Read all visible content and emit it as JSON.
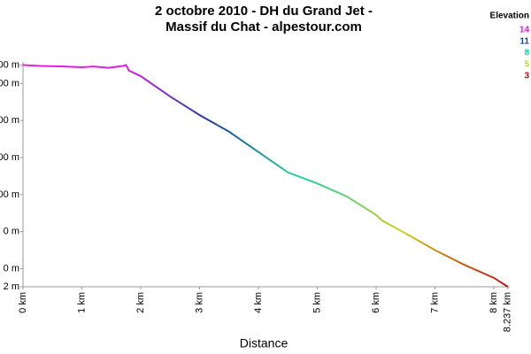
{
  "chart_data": {
    "type": "line",
    "title": [
      "2 octobre 2010 - DH du Grand Jet -",
      "Massif du Chat - alpestour.com"
    ],
    "xlabel": "Distance",
    "x": [
      0,
      0.3,
      0.7,
      1.0,
      1.2,
      1.45,
      1.7,
      1.75,
      1.8,
      2.0,
      2.5,
      3.0,
      3.5,
      4.0,
      4.5,
      5.0,
      5.5,
      6.0,
      6.1,
      6.5,
      7.0,
      7.5,
      8.0,
      8.237
    ],
    "series": [
      {
        "values": [
          1500,
          1495,
          1492,
          1488,
          1492,
          1485,
          1495,
          1500,
          1470,
          1440,
          1330,
          1230,
          1140,
          1030,
          920,
          860,
          790,
          690,
          660,
          590,
          500,
          420,
          350,
          302
        ]
      }
    ],
    "xlim": [
      0,
      8.237
    ],
    "xticks": [
      {
        "value": 0,
        "label": "0 km"
      },
      {
        "value": 1,
        "label": "1 km"
      },
      {
        "value": 2,
        "label": "2 km"
      },
      {
        "value": 3,
        "label": "3 km"
      },
      {
        "value": 4,
        "label": "4 km"
      },
      {
        "value": 5,
        "label": "5 km"
      },
      {
        "value": 6,
        "label": "6 km"
      },
      {
        "value": 7,
        "label": "7 km"
      },
      {
        "value": 8,
        "label": "8 km"
      },
      {
        "value": 8.237,
        "label": "8.237 km"
      }
    ],
    "ylim": [
      302,
      1500
    ],
    "yticks": [
      {
        "value": 1500,
        "label": "00 m"
      },
      {
        "value": 1400,
        "label": "00 m"
      },
      {
        "value": 1200,
        "label": "00 m"
      },
      {
        "value": 1000,
        "label": "00 m"
      },
      {
        "value": 800,
        "label": "00 m"
      },
      {
        "value": 600,
        "label": "0 m"
      },
      {
        "value": 400,
        "label": "0 m"
      },
      {
        "value": 302,
        "label": "2 m"
      }
    ],
    "legend_title": "Elevation",
    "legend": [
      {
        "label": "14",
        "color": "#e020e0"
      },
      {
        "label": "11",
        "color": "#2040a0"
      },
      {
        "label": "8",
        "color": "#20d0a0"
      },
      {
        "label": "5",
        "color": "#d0d020"
      },
      {
        "label": "3",
        "color": "#c01010"
      }
    ]
  }
}
